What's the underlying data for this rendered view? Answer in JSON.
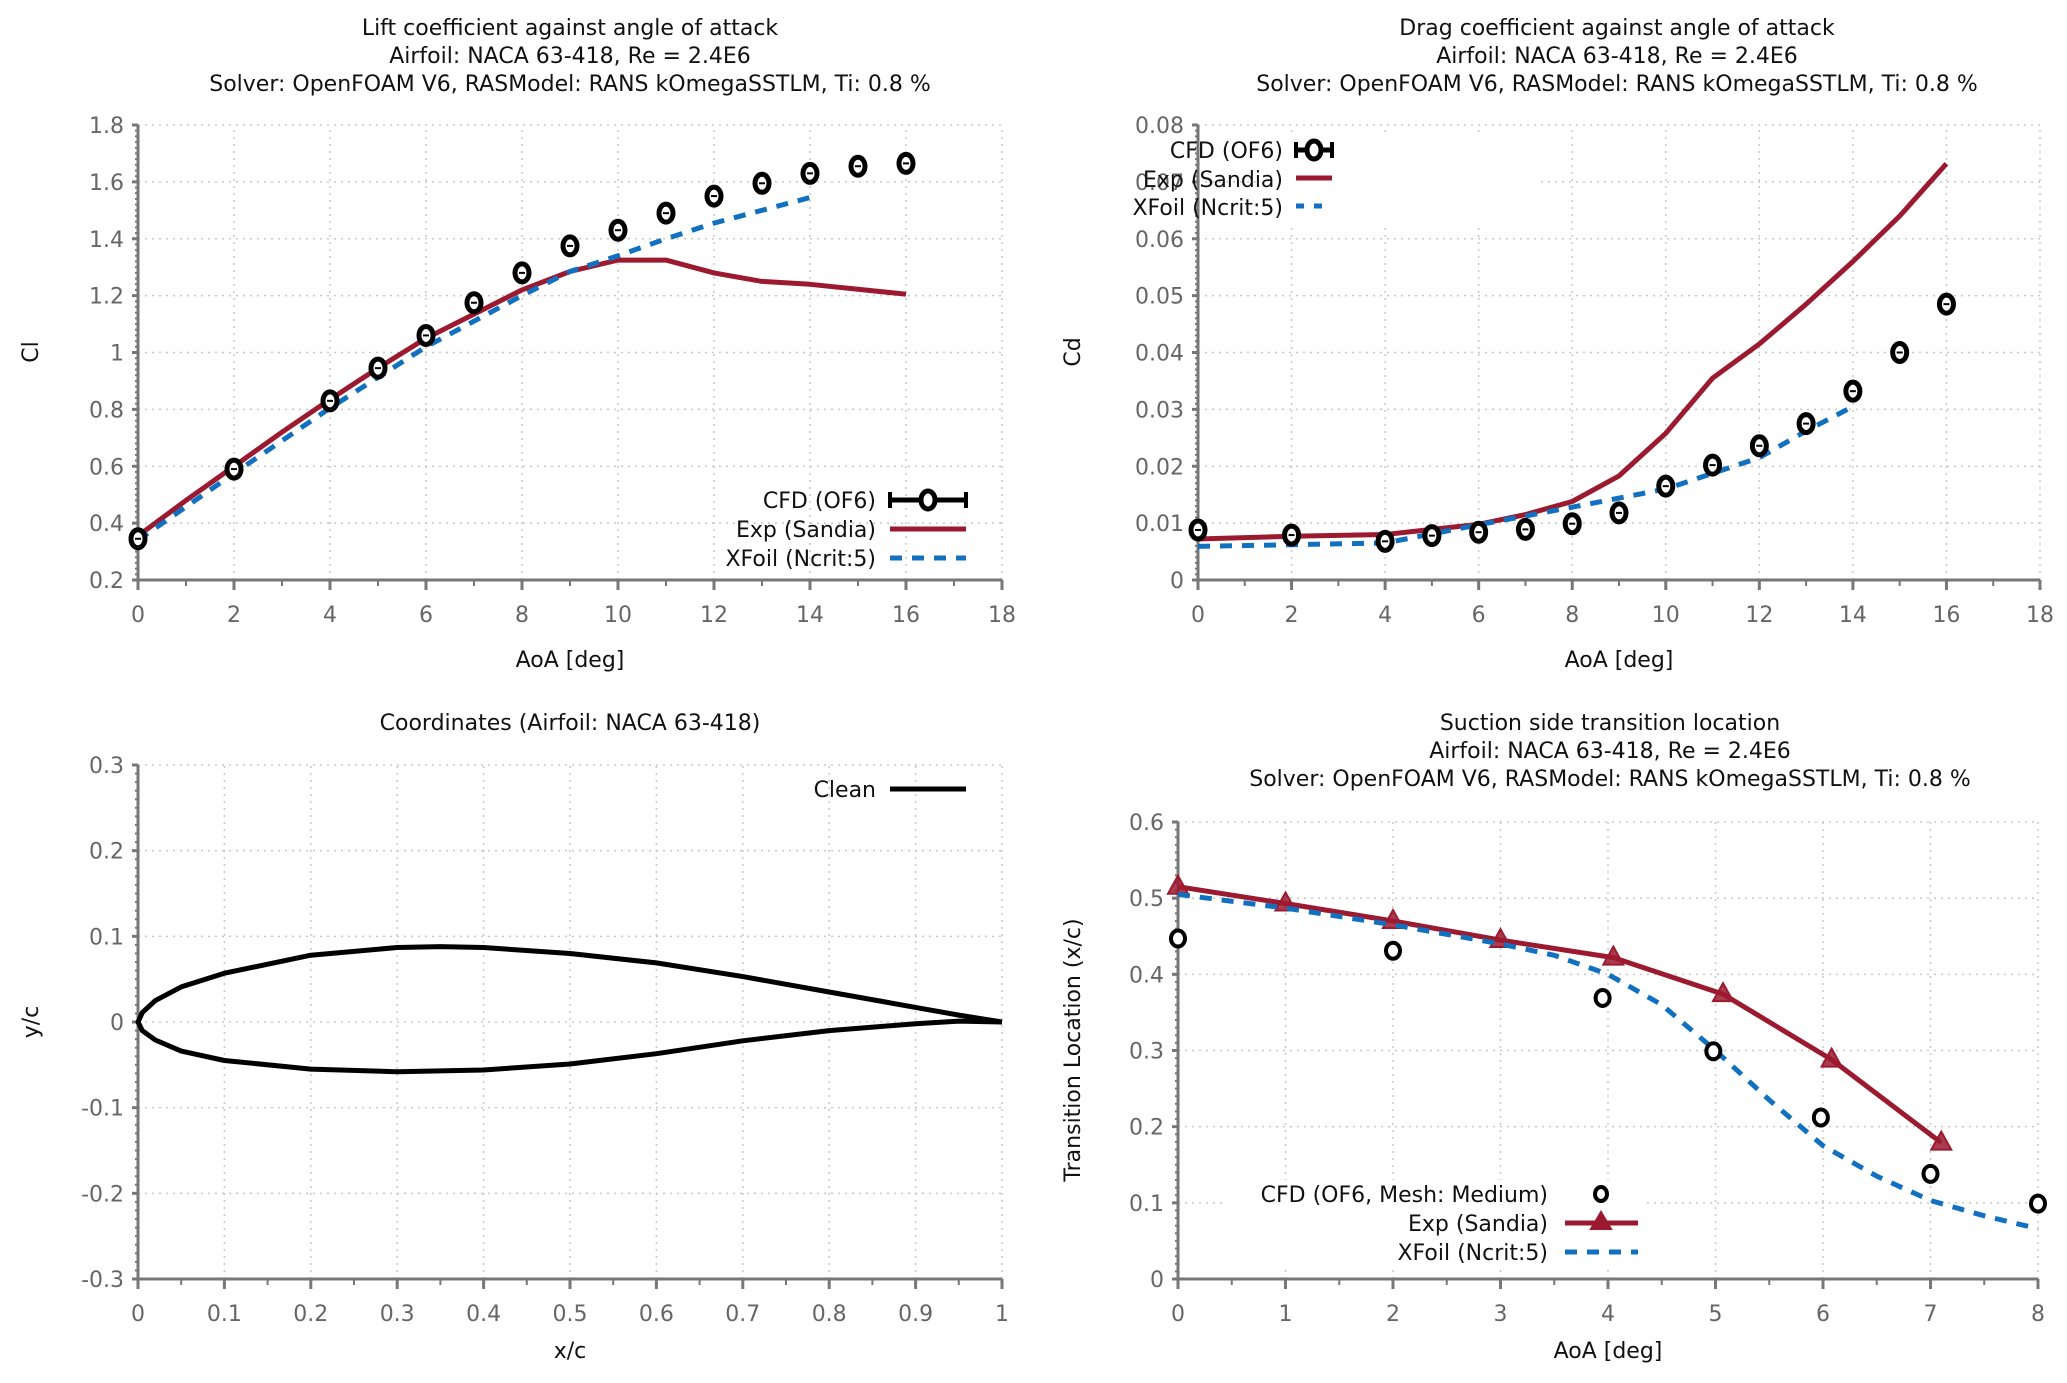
{
  "colors": {
    "cfd": "#000000",
    "exp": "#9c1a30",
    "xfoil": "#1170c0"
  },
  "chart_data": [
    {
      "id": "lift",
      "type": "line",
      "title": [
        "Lift coefficient against angle of attack",
        "Airfoil: NACA 63-418, Re = 2.4E6",
        "Solver: OpenFOAM V6, RASModel: RANS kOmegaSSTLM, Ti: 0.8 %"
      ],
      "xlabel": "AoA [deg]",
      "ylabel": "Cl",
      "xlim": [
        0,
        18
      ],
      "ylim": [
        0.2,
        1.8
      ],
      "xticks": [
        0,
        2,
        4,
        6,
        8,
        10,
        12,
        14,
        16,
        18
      ],
      "yticks": [
        0.2,
        0.4,
        0.6,
        0.8,
        1,
        1.2,
        1.4,
        1.6,
        1.8
      ],
      "ytick_labels": [
        "0.2",
        "0.4",
        "0.6",
        "0.8",
        "1",
        "1.2",
        "1.4",
        "1.6",
        "1.8"
      ],
      "grid": true,
      "legend_position": "bottom-right",
      "series": [
        {
          "name": "CFD (OF6)",
          "style": "errorbar-circle",
          "x": [
            0,
            2,
            4,
            5,
            6,
            7,
            8,
            9,
            10,
            11,
            12,
            13,
            14,
            15,
            16
          ],
          "y": [
            0.345,
            0.59,
            0.83,
            0.945,
            1.06,
            1.175,
            1.28,
            1.375,
            1.43,
            1.49,
            1.55,
            1.595,
            1.63,
            1.655,
            1.665
          ]
        },
        {
          "name": "Exp (Sandia)",
          "style": "line",
          "x": [
            0,
            1,
            2,
            3,
            4,
            5,
            6,
            7,
            8,
            9,
            10,
            11,
            12,
            13,
            14,
            16
          ],
          "y": [
            0.355,
            0.48,
            0.6,
            0.72,
            0.835,
            0.945,
            1.05,
            1.135,
            1.22,
            1.285,
            1.325,
            1.325,
            1.28,
            1.25,
            1.24,
            1.205
          ]
        },
        {
          "name": "XFoil (Ncrit:5)",
          "style": "dashed",
          "x": [
            0,
            2,
            4,
            6,
            8,
            9,
            10,
            11,
            12,
            13,
            14
          ],
          "y": [
            0.34,
            0.575,
            0.805,
            1.02,
            1.2,
            1.285,
            1.34,
            1.4,
            1.455,
            1.5,
            1.545
          ]
        }
      ]
    },
    {
      "id": "drag",
      "type": "line",
      "title": [
        "Drag coefficient against angle of attack",
        "Airfoil: NACA 63-418, Re = 2.4E6",
        "Solver: OpenFOAM V6, RASModel: RANS kOmegaSSTLM, Ti: 0.8 %"
      ],
      "xlabel": "AoA [deg]",
      "ylabel": "Cd",
      "xlim": [
        0,
        18
      ],
      "ylim": [
        0,
        0.08
      ],
      "xticks": [
        0,
        2,
        4,
        6,
        8,
        10,
        12,
        14,
        16,
        18
      ],
      "yticks": [
        0,
        0.01,
        0.02,
        0.03,
        0.04,
        0.05,
        0.06,
        0.07,
        0.08
      ],
      "ytick_labels": [
        "0",
        "0.01",
        "0.02",
        "0.03",
        "0.04",
        "0.05",
        "0.06",
        "0.07",
        "0.08"
      ],
      "grid": true,
      "legend_position": "top-left",
      "series": [
        {
          "name": "CFD (OF6)",
          "style": "errorbar-circle",
          "x": [
            0,
            2,
            4,
            5,
            6,
            7,
            8,
            9,
            10,
            11,
            12,
            13,
            14,
            15,
            16
          ],
          "y": [
            0.0088,
            0.0079,
            0.0068,
            0.0078,
            0.0084,
            0.0089,
            0.0099,
            0.0118,
            0.0165,
            0.0202,
            0.0236,
            0.0275,
            0.0332,
            0.04,
            0.0485
          ]
        },
        {
          "name": "Exp (Sandia)",
          "style": "line",
          "x": [
            0,
            2,
            4,
            5,
            6,
            7,
            8,
            9,
            10,
            11,
            12,
            13,
            14,
            15,
            16
          ],
          "y": [
            0.0072,
            0.0077,
            0.008,
            0.0089,
            0.0098,
            0.0115,
            0.0138,
            0.0183,
            0.0258,
            0.0355,
            0.0415,
            0.0485,
            0.056,
            0.064,
            0.0732
          ]
        },
        {
          "name": "XFoil (Ncrit:5)",
          "style": "dashed",
          "x": [
            0,
            2,
            4,
            6,
            8,
            10,
            12,
            13,
            14
          ],
          "y": [
            0.0059,
            0.0062,
            0.0065,
            0.0097,
            0.0128,
            0.016,
            0.0215,
            0.0262,
            0.0305
          ]
        }
      ]
    },
    {
      "id": "coords",
      "type": "line",
      "title": [
        "Coordinates (Airfoil: NACA 63-418)"
      ],
      "xlabel": "x/c",
      "ylabel": "y/c",
      "xlim": [
        0,
        1
      ],
      "ylim": [
        -0.3,
        0.3
      ],
      "xticks": [
        0,
        0.1,
        0.2,
        0.3,
        0.4,
        0.5,
        0.6,
        0.7,
        0.8,
        0.9,
        1
      ],
      "xtick_labels": [
        "0",
        "0.1",
        "0.2",
        "0.3",
        "0.4",
        "0.5",
        "0.6",
        "0.7",
        "0.8",
        "0.9",
        "1"
      ],
      "yticks": [
        -0.3,
        -0.2,
        -0.1,
        0,
        0.1,
        0.2,
        0.3
      ],
      "ytick_labels": [
        "-0.3",
        "-0.2",
        "-0.1",
        "0",
        "0.1",
        "0.2",
        "0.3"
      ],
      "grid": true,
      "legend_position": "top-right",
      "series": [
        {
          "name": "Clean",
          "style": "line",
          "x": [
            1,
            0.95,
            0.9,
            0.8,
            0.7,
            0.6,
            0.5,
            0.4,
            0.35,
            0.3,
            0.2,
            0.1,
            0.05,
            0.02,
            0.005,
            0,
            0.005,
            0.02,
            0.05,
            0.1,
            0.2,
            0.3,
            0.4,
            0.5,
            0.6,
            0.7,
            0.8,
            0.9,
            0.95,
            1
          ],
          "y": [
            0,
            0.008,
            0.017,
            0.035,
            0.053,
            0.069,
            0.08,
            0.087,
            0.088,
            0.087,
            0.078,
            0.057,
            0.041,
            0.025,
            0.011,
            0,
            -0.01,
            -0.021,
            -0.034,
            -0.045,
            -0.055,
            -0.058,
            -0.056,
            -0.049,
            -0.037,
            -0.022,
            -0.01,
            -0.002,
            0.001,
            0
          ]
        }
      ]
    },
    {
      "id": "transition",
      "type": "line",
      "title": [
        "Suction side transition location",
        "Airfoil: NACA 63-418, Re = 2.4E6",
        "Solver: OpenFOAM V6, RASModel: RANS kOmegaSSTLM, Ti: 0.8 %"
      ],
      "xlabel": "AoA [deg]",
      "ylabel": "Transition Location (x/c)",
      "xlim": [
        0,
        8
      ],
      "ylim": [
        0,
        0.6
      ],
      "xticks": [
        0,
        1,
        2,
        3,
        4,
        5,
        6,
        7,
        8
      ],
      "yticks": [
        0,
        0.1,
        0.2,
        0.3,
        0.4,
        0.5,
        0.6
      ],
      "ytick_labels": [
        "0",
        "0.1",
        "0.2",
        "0.3",
        "0.4",
        "0.5",
        "0.6"
      ],
      "grid": true,
      "legend_position": "bottom-left",
      "series": [
        {
          "name": "CFD (OF6, Mesh: Medium)",
          "style": "circle",
          "x": [
            0,
            2,
            3.95,
            4.98,
            5.98,
            7,
            8
          ],
          "y": [
            0.447,
            0.431,
            0.369,
            0.299,
            0.212,
            0.138,
            0.099
          ]
        },
        {
          "name": "Exp (Sandia)",
          "style": "line-triangle",
          "x": [
            0,
            1,
            2,
            3,
            4.05,
            5.07,
            6.08,
            7.1
          ],
          "y": [
            0.515,
            0.493,
            0.47,
            0.445,
            0.422,
            0.374,
            0.288,
            0.179
          ]
        },
        {
          "name": "XFoil (Ncrit:5)",
          "style": "dashed",
          "x": [
            0,
            1,
            2,
            3,
            3.5,
            4,
            4.5,
            5,
            5.5,
            6,
            6.5,
            7,
            7.5,
            8
          ],
          "y": [
            0.505,
            0.487,
            0.465,
            0.44,
            0.425,
            0.4,
            0.36,
            0.3,
            0.235,
            0.175,
            0.135,
            0.103,
            0.083,
            0.066
          ]
        }
      ]
    }
  ]
}
